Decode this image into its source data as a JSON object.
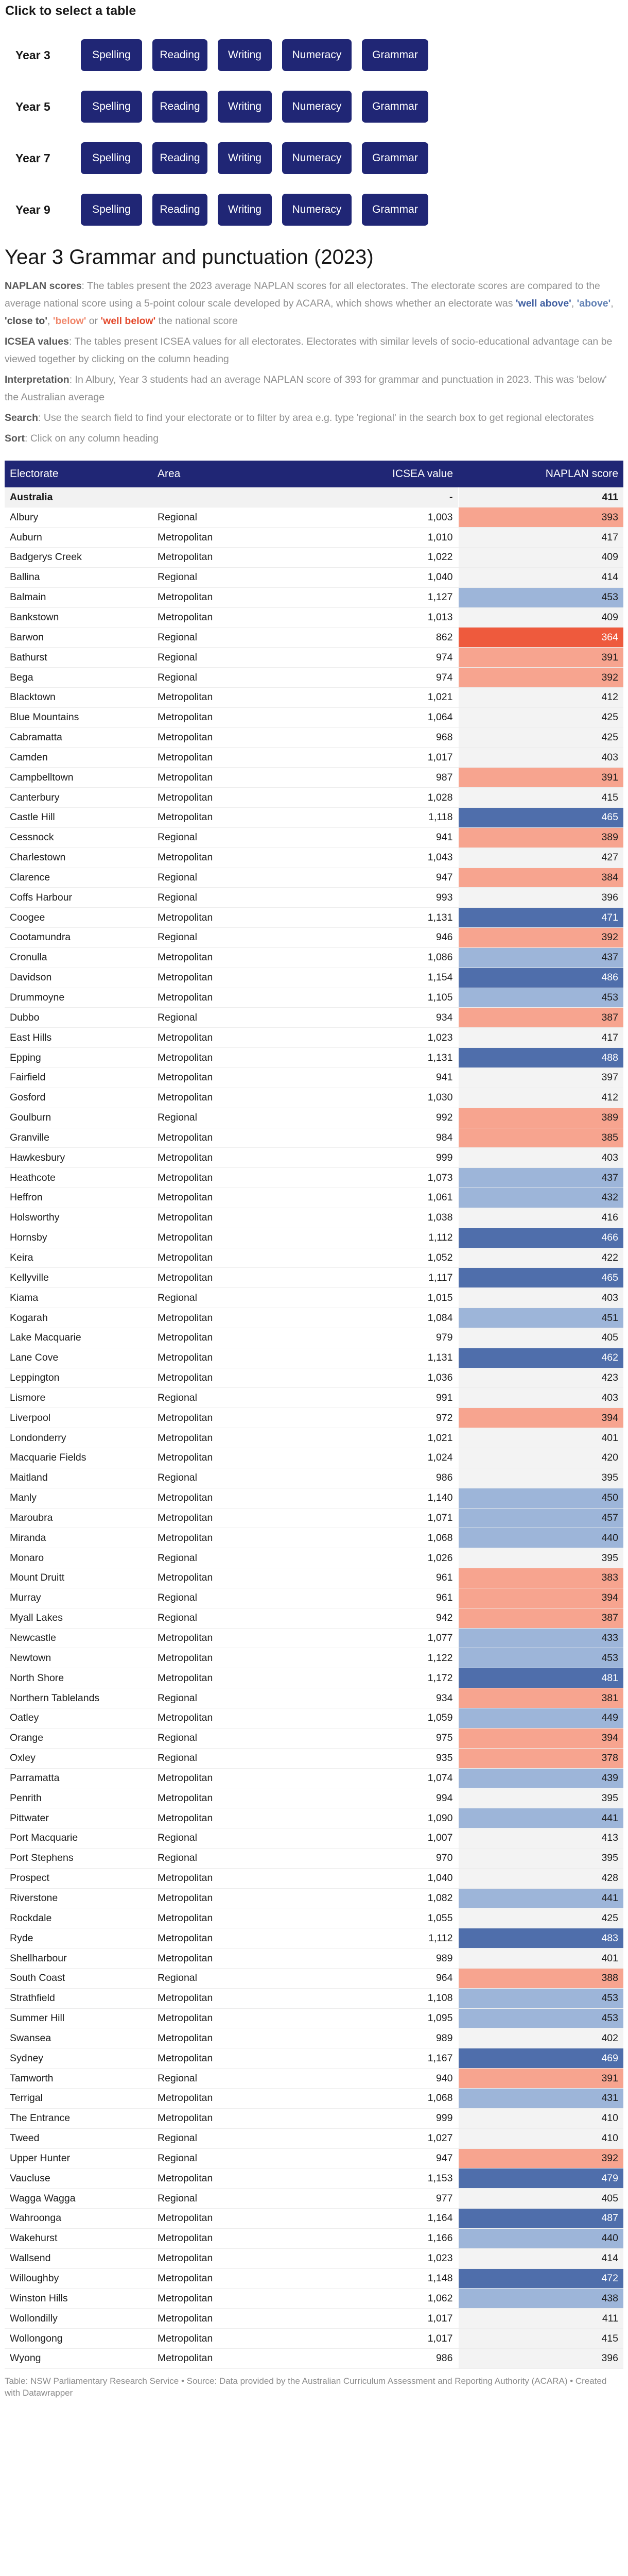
{
  "selector": {
    "title": "Click to select a table",
    "buttons": [
      "Spelling",
      "Reading",
      "Writing",
      "Numeracy",
      "Grammar"
    ],
    "years": [
      "Year 3",
      "Year 5",
      "Year 7",
      "Year 9"
    ]
  },
  "heading": {
    "title": "Year 3 Grammar and punctuation (2023)"
  },
  "notes": {
    "naplan_label": "NAPLAN scores",
    "naplan_text": ": The tables present the 2023 average NAPLAN scores for all electorates. The electorate scores are compared to the average national score using a 5-point colour scale developed by ACARA, which shows whether an electorate was ",
    "well_above": "'well above'",
    "sep1": ", ",
    "above": "'above'",
    "sep2": ", ",
    "close_to": "'close to'",
    "sep3": ", ",
    "below": "'below'",
    "sep4": " or ",
    "well_below": "'well below'",
    "naplan_end": " the national score",
    "icsea_label": "ICSEA values",
    "icsea_text": ": The tables present ICSEA values for all electorates. Electorates with similar levels of socio-educational advantage can be viewed together by clicking on the column heading",
    "interp_label": "Interpretation",
    "interp_text": ": In Albury, Year 3 students had an average NAPLAN score of 393 for grammar and punctuation in 2023. This was 'below' the Australian average",
    "search_label": "Search",
    "search_text": ": Use the search field to find your electorate or to filter by area e.g. type 'regional' in the search box to get regional electorates",
    "sort_label": "Sort",
    "sort_text": ": Click on any column heading"
  },
  "table": {
    "columns": [
      "Electorate",
      "Area",
      "ICSEA value",
      "NAPLAN score"
    ],
    "national": {
      "name": "Australia",
      "area": "",
      "icsea": "-",
      "score": "411"
    },
    "rows": [
      [
        "Albury",
        "Regional",
        "1,003",
        "393"
      ],
      [
        "Auburn",
        "Metropolitan",
        "1,010",
        "417"
      ],
      [
        "Badgerys Creek",
        "Metropolitan",
        "1,022",
        "409"
      ],
      [
        "Ballina",
        "Regional",
        "1,040",
        "414"
      ],
      [
        "Balmain",
        "Metropolitan",
        "1,127",
        "453"
      ],
      [
        "Bankstown",
        "Metropolitan",
        "1,013",
        "409"
      ],
      [
        "Barwon",
        "Regional",
        "862",
        "364"
      ],
      [
        "Bathurst",
        "Regional",
        "974",
        "391"
      ],
      [
        "Bega",
        "Regional",
        "974",
        "392"
      ],
      [
        "Blacktown",
        "Metropolitan",
        "1,021",
        "412"
      ],
      [
        "Blue Mountains",
        "Metropolitan",
        "1,064",
        "425"
      ],
      [
        "Cabramatta",
        "Metropolitan",
        "968",
        "425"
      ],
      [
        "Camden",
        "Metropolitan",
        "1,017",
        "403"
      ],
      [
        "Campbelltown",
        "Metropolitan",
        "987",
        "391"
      ],
      [
        "Canterbury",
        "Metropolitan",
        "1,028",
        "415"
      ],
      [
        "Castle Hill",
        "Metropolitan",
        "1,118",
        "465"
      ],
      [
        "Cessnock",
        "Regional",
        "941",
        "389"
      ],
      [
        "Charlestown",
        "Metropolitan",
        "1,043",
        "427"
      ],
      [
        "Clarence",
        "Regional",
        "947",
        "384"
      ],
      [
        "Coffs Harbour",
        "Regional",
        "993",
        "396"
      ],
      [
        "Coogee",
        "Metropolitan",
        "1,131",
        "471"
      ],
      [
        "Cootamundra",
        "Regional",
        "946",
        "392"
      ],
      [
        "Cronulla",
        "Metropolitan",
        "1,086",
        "437"
      ],
      [
        "Davidson",
        "Metropolitan",
        "1,154",
        "486"
      ],
      [
        "Drummoyne",
        "Metropolitan",
        "1,105",
        "453"
      ],
      [
        "Dubbo",
        "Regional",
        "934",
        "387"
      ],
      [
        "East Hills",
        "Metropolitan",
        "1,023",
        "417"
      ],
      [
        "Epping",
        "Metropolitan",
        "1,131",
        "488"
      ],
      [
        "Fairfield",
        "Metropolitan",
        "941",
        "397"
      ],
      [
        "Gosford",
        "Metropolitan",
        "1,030",
        "412"
      ],
      [
        "Goulburn",
        "Regional",
        "992",
        "389"
      ],
      [
        "Granville",
        "Metropolitan",
        "984",
        "385"
      ],
      [
        "Hawkesbury",
        "Metropolitan",
        "999",
        "403"
      ],
      [
        "Heathcote",
        "Metropolitan",
        "1,073",
        "437"
      ],
      [
        "Heffron",
        "Metropolitan",
        "1,061",
        "432"
      ],
      [
        "Holsworthy",
        "Metropolitan",
        "1,038",
        "416"
      ],
      [
        "Hornsby",
        "Metropolitan",
        "1,112",
        "466"
      ],
      [
        "Keira",
        "Metropolitan",
        "1,052",
        "422"
      ],
      [
        "Kellyville",
        "Metropolitan",
        "1,117",
        "465"
      ],
      [
        "Kiama",
        "Regional",
        "1,015",
        "403"
      ],
      [
        "Kogarah",
        "Metropolitan",
        "1,084",
        "451"
      ],
      [
        "Lake Macquarie",
        "Metropolitan",
        "979",
        "405"
      ],
      [
        "Lane Cove",
        "Metropolitan",
        "1,131",
        "462"
      ],
      [
        "Leppington",
        "Metropolitan",
        "1,036",
        "423"
      ],
      [
        "Lismore",
        "Regional",
        "991",
        "403"
      ],
      [
        "Liverpool",
        "Metropolitan",
        "972",
        "394"
      ],
      [
        "Londonderry",
        "Metropolitan",
        "1,021",
        "401"
      ],
      [
        "Macquarie Fields",
        "Metropolitan",
        "1,024",
        "420"
      ],
      [
        "Maitland",
        "Regional",
        "986",
        "395"
      ],
      [
        "Manly",
        "Metropolitan",
        "1,140",
        "450"
      ],
      [
        "Maroubra",
        "Metropolitan",
        "1,071",
        "457"
      ],
      [
        "Miranda",
        "Metropolitan",
        "1,068",
        "440"
      ],
      [
        "Monaro",
        "Regional",
        "1,026",
        "395"
      ],
      [
        "Mount Druitt",
        "Metropolitan",
        "961",
        "383"
      ],
      [
        "Murray",
        "Regional",
        "961",
        "394"
      ],
      [
        "Myall Lakes",
        "Regional",
        "942",
        "387"
      ],
      [
        "Newcastle",
        "Metropolitan",
        "1,077",
        "433"
      ],
      [
        "Newtown",
        "Metropolitan",
        "1,122",
        "453"
      ],
      [
        "North Shore",
        "Metropolitan",
        "1,172",
        "481"
      ],
      [
        "Northern Tablelands",
        "Regional",
        "934",
        "381"
      ],
      [
        "Oatley",
        "Metropolitan",
        "1,059",
        "449"
      ],
      [
        "Orange",
        "Regional",
        "975",
        "394"
      ],
      [
        "Oxley",
        "Regional",
        "935",
        "378"
      ],
      [
        "Parramatta",
        "Metropolitan",
        "1,074",
        "439"
      ],
      [
        "Penrith",
        "Metropolitan",
        "994",
        "395"
      ],
      [
        "Pittwater",
        "Metropolitan",
        "1,090",
        "441"
      ],
      [
        "Port Macquarie",
        "Regional",
        "1,007",
        "413"
      ],
      [
        "Port Stephens",
        "Regional",
        "970",
        "395"
      ],
      [
        "Prospect",
        "Metropolitan",
        "1,040",
        "428"
      ],
      [
        "Riverstone",
        "Metropolitan",
        "1,082",
        "441"
      ],
      [
        "Rockdale",
        "Metropolitan",
        "1,055",
        "425"
      ],
      [
        "Ryde",
        "Metropolitan",
        "1,112",
        "483"
      ],
      [
        "Shellharbour",
        "Metropolitan",
        "989",
        "401"
      ],
      [
        "South Coast",
        "Regional",
        "964",
        "388"
      ],
      [
        "Strathfield",
        "Metropolitan",
        "1,108",
        "453"
      ],
      [
        "Summer Hill",
        "Metropolitan",
        "1,095",
        "453"
      ],
      [
        "Swansea",
        "Metropolitan",
        "989",
        "402"
      ],
      [
        "Sydney",
        "Metropolitan",
        "1,167",
        "469"
      ],
      [
        "Tamworth",
        "Regional",
        "940",
        "391"
      ],
      [
        "Terrigal",
        "Metropolitan",
        "1,068",
        "431"
      ],
      [
        "The Entrance",
        "Metropolitan",
        "999",
        "410"
      ],
      [
        "Tweed",
        "Regional",
        "1,027",
        "410"
      ],
      [
        "Upper Hunter",
        "Regional",
        "947",
        "392"
      ],
      [
        "Vaucluse",
        "Metropolitan",
        "1,153",
        "479"
      ],
      [
        "Wagga Wagga",
        "Regional",
        "977",
        "405"
      ],
      [
        "Wahroonga",
        "Metropolitan",
        "1,164",
        "487"
      ],
      [
        "Wakehurst",
        "Metropolitan",
        "1,166",
        "440"
      ],
      [
        "Wallsend",
        "Metropolitan",
        "1,023",
        "414"
      ],
      [
        "Willoughby",
        "Metropolitan",
        "1,148",
        "472"
      ],
      [
        "Winston Hills",
        "Metropolitan",
        "1,062",
        "438"
      ],
      [
        "Wollondilly",
        "Metropolitan",
        "1,017",
        "411"
      ],
      [
        "Wollongong",
        "Metropolitan",
        "1,017",
        "415"
      ],
      [
        "Wyong",
        "Metropolitan",
        "986",
        "396"
      ]
    ]
  },
  "colors": {
    "header_bg": "#202675",
    "well_above": "#4f6eab",
    "above": "#9db5d9",
    "close_to": "#f3f3f3",
    "below": "#f7a48f",
    "well_below": "#ee5a3d"
  },
  "footer": {
    "text": "Table: NSW Parliamentary Research Service • Source: Data provided by the Australian Curriculum Assessment and Reporting Authority (ACARA) • Created with Datawrapper"
  }
}
